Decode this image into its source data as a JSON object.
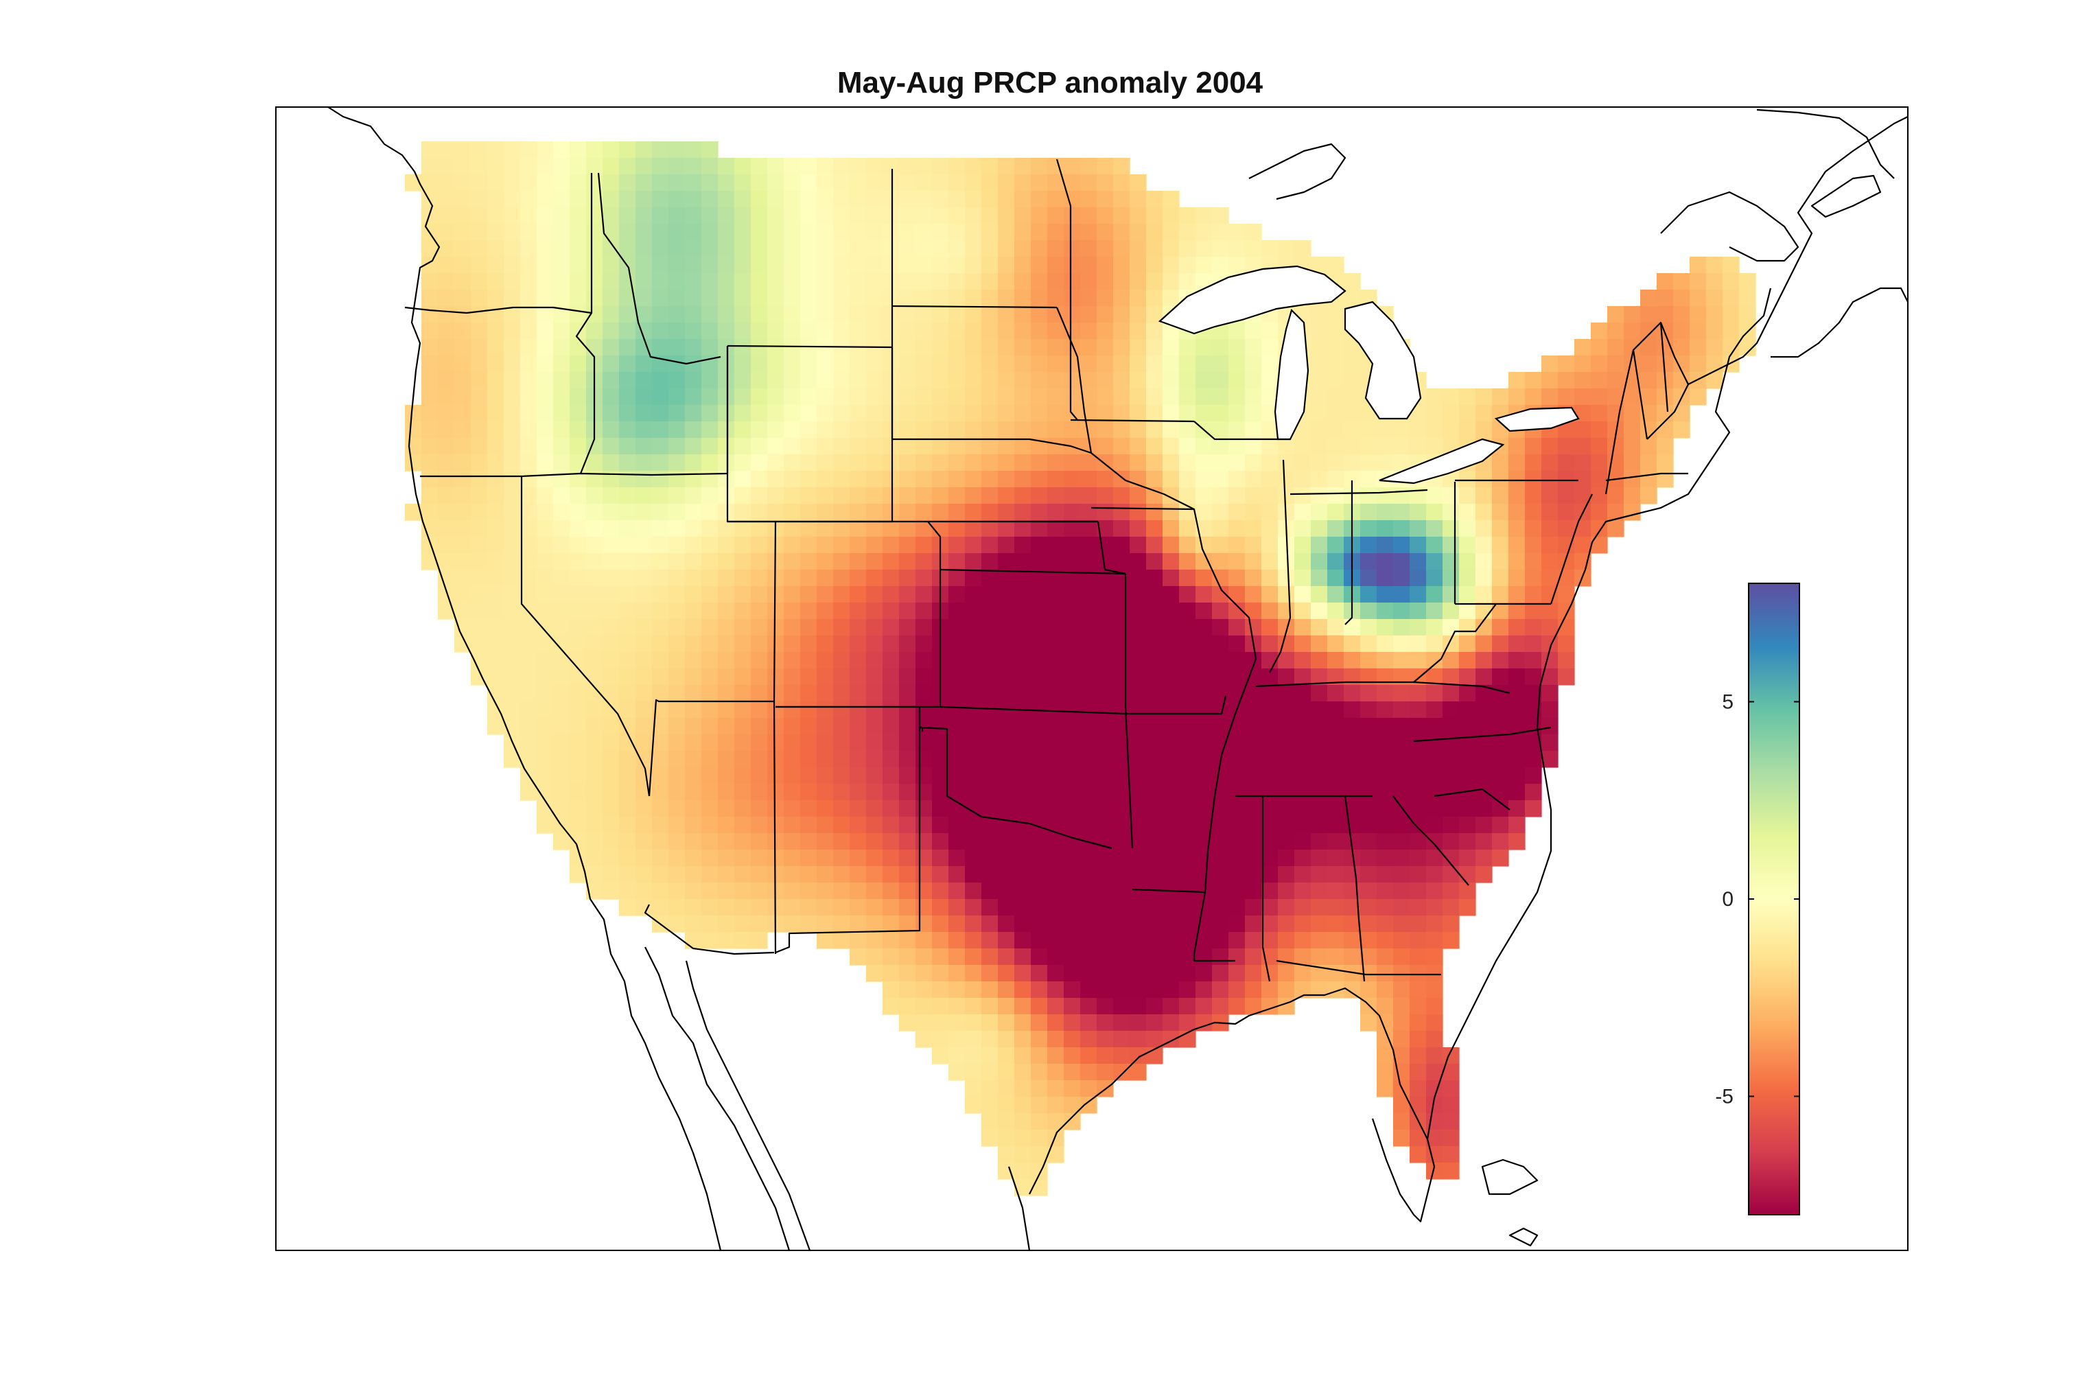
{
  "title": "May-Aug PRCP anomaly 2004",
  "map": {
    "region": "Contiguous United States",
    "variable": "PRCP anomaly",
    "period": "May-Aug 2004",
    "grid_layout": "raster",
    "frame": "box",
    "outlines": [
      "coastlines",
      "state borders",
      "Great Lakes"
    ]
  },
  "colorbar": {
    "orientation": "vertical",
    "placement": "right, inside map frame",
    "colormap": "Spectral",
    "range": [
      -8,
      8
    ],
    "ticks": [
      5,
      0,
      -5
    ],
    "tick_labels": [
      "5",
      "0",
      "-5"
    ],
    "stops": [
      "#9e0142",
      "#d53e4f",
      "#f46d43",
      "#fdae61",
      "#fee08b",
      "#ffffbf",
      "#e6f598",
      "#abdda4",
      "#66c2a5",
      "#3288bd",
      "#5e4fa2"
    ]
  },
  "features": {
    "wettest": [
      "Ohio (strongest positive, ~ +8)",
      "western Montana (~ +4)",
      "Wisconsin (~ +3)"
    ],
    "driest": [
      "Missouri/Kansas border (~ -8)",
      "Louisiana & east Texas (~ -6)",
      "North Carolina coast (~ -6)",
      "south Florida (~ -5)"
    ]
  }
}
